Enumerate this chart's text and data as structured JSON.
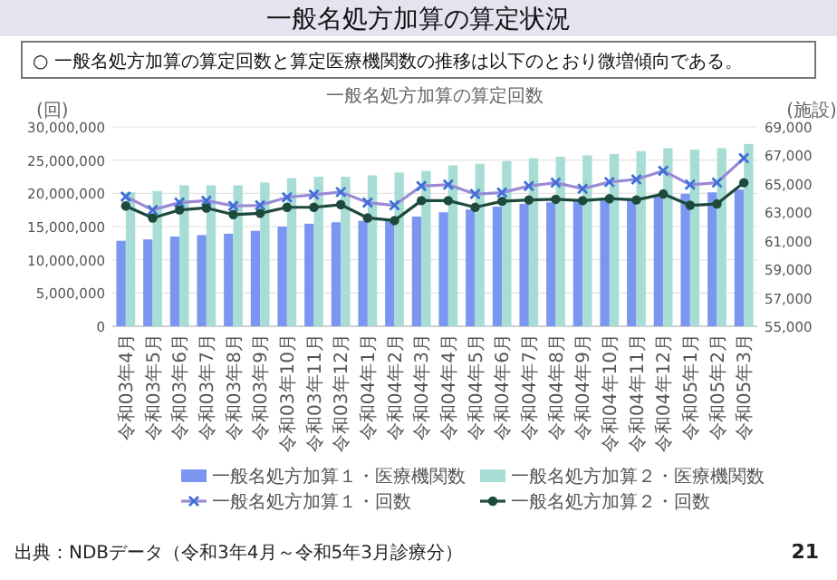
{
  "chart_data": {
    "type": "bar",
    "title": "一般名処方加算の算定状況",
    "subtitle": "○ 一般名処方加算の算定回数と算定医療機関数の推移は以下のとおり微増傾向である。",
    "annotations": [
      "一般名処方加算の算定回数",
      "出典：NDBデータ（令和3年4月～令和5年3月診療分）",
      "21"
    ],
    "ylabel": "(回)",
    "y2label": "(施設)",
    "categories": [
      "令和03年4月",
      "令和03年5月",
      "令和03年6月",
      "令和03年7月",
      "令和03年8月",
      "令和03年9月",
      "令和03年10月",
      "令和03年11月",
      "令和03年12月",
      "令和04年1月",
      "令和04年2月",
      "令和04年3月",
      "令和04年4月",
      "令和04年5月",
      "令和04年6月",
      "令和04年7月",
      "令和04年8月",
      "令和04年9月",
      "令和04年10月",
      "令和04年11月",
      "令和04年12月",
      "令和05年1月",
      "令和05年2月",
      "令和05年3月"
    ],
    "series": [
      {
        "name": "一般名処方加算１・医療機関数",
        "axis": "y2",
        "color": "#7b96f0",
        "values": [
          61000,
          61100,
          61300,
          61400,
          61500,
          61700,
          62000,
          62200,
          62300,
          62400,
          62500,
          62700,
          63000,
          63200,
          63400,
          63600,
          63700,
          63800,
          63900,
          64000,
          64100,
          64300,
          64400,
          64600
        ]
      },
      {
        "name": "一般名処方加算２・医療機関数",
        "axis": "y2",
        "color": "#a8ddd6",
        "values": [
          64400,
          64500,
          64900,
          64900,
          64900,
          65100,
          65400,
          65500,
          65500,
          65600,
          65800,
          65900,
          66300,
          66400,
          66600,
          66800,
          66900,
          67000,
          67100,
          67300,
          67500,
          67400,
          67500,
          67800
        ]
      },
      {
        "name": "一般名処方加算１・回数",
        "type": "line",
        "marker": "cross",
        "color": "#9a8ad6",
        "values": [
          19500000,
          17500000,
          18600000,
          18900000,
          18100000,
          18200000,
          19400000,
          19800000,
          20200000,
          18600000,
          18200000,
          21100000,
          21300000,
          19900000,
          20100000,
          21100000,
          21600000,
          20700000,
          21700000,
          22100000,
          23400000,
          21300000,
          21600000,
          25300000
        ]
      },
      {
        "name": "一般名処方加算２・回数",
        "type": "line",
        "marker": "circle",
        "color": "#1e4a3c",
        "values": [
          18100000,
          16300000,
          17500000,
          17800000,
          16800000,
          17000000,
          17900000,
          17900000,
          18300000,
          16300000,
          15900000,
          18900000,
          18900000,
          17900000,
          18800000,
          19000000,
          19100000,
          18900000,
          19200000,
          19000000,
          19900000,
          18200000,
          18400000,
          21600000
        ]
      }
    ],
    "ylim": [
      0,
      30000000
    ],
    "yticks": [
      {
        "value": 0,
        "label": "0"
      },
      {
        "value": 5000000,
        "label": "5,000,000"
      },
      {
        "value": 10000000,
        "label": "10,000,000"
      },
      {
        "value": 15000000,
        "label": "15,000,000"
      },
      {
        "value": 20000000,
        "label": "20,000,000"
      },
      {
        "value": 25000000,
        "label": "25,000,000"
      },
      {
        "value": 30000000,
        "label": "30,000,000"
      }
    ],
    "y2lim": [
      55000,
      69000
    ],
    "y2ticks": [
      {
        "value": 55000,
        "label": "55,000"
      },
      {
        "value": 57000,
        "label": "57,000"
      },
      {
        "value": 59000,
        "label": "59,000"
      },
      {
        "value": 61000,
        "label": "61,000"
      },
      {
        "value": 63000,
        "label": "63,000"
      },
      {
        "value": 65000,
        "label": "65,000"
      },
      {
        "value": 67000,
        "label": "67,000"
      },
      {
        "value": 69000,
        "label": "69,000"
      }
    ],
    "grid": "y",
    "legend": "bottom"
  }
}
